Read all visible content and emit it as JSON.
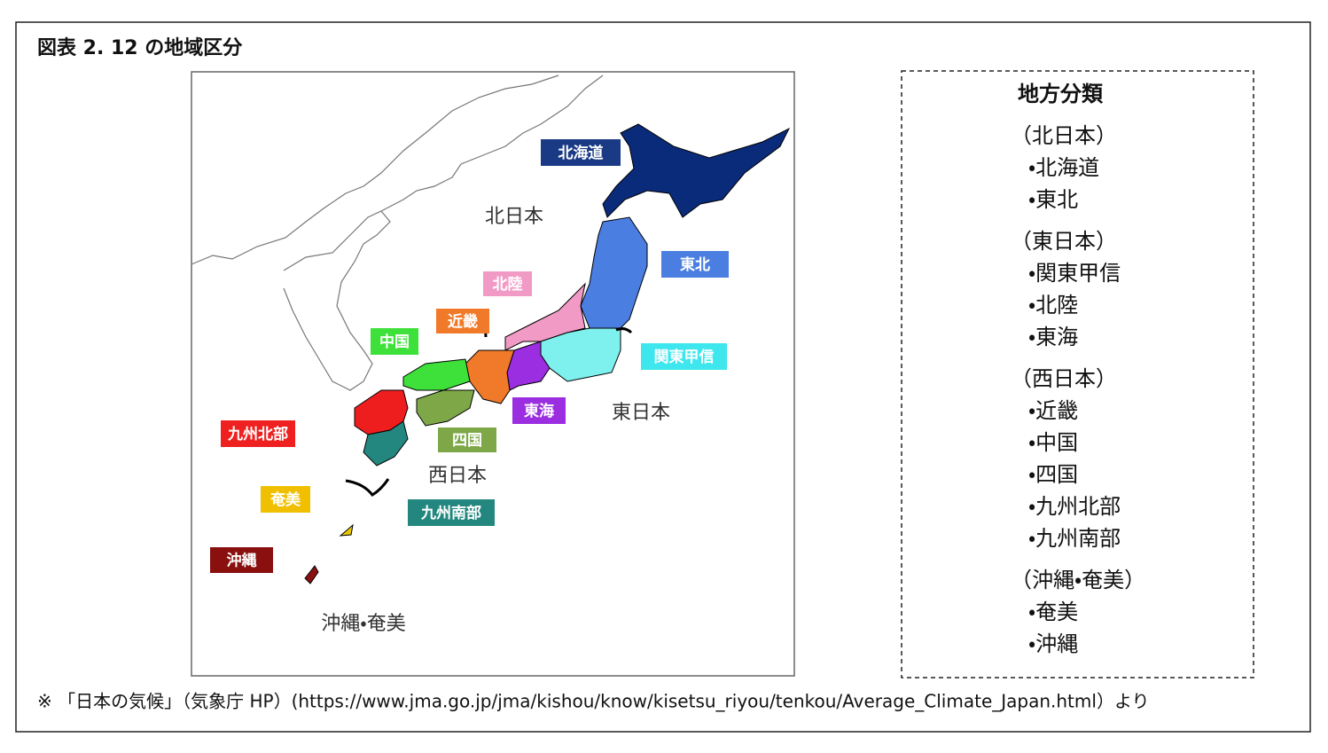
{
  "title": "図表 2. 12 の地域区分",
  "map": {
    "region_labels": [
      "北海道",
      "東北",
      "北陸",
      "近畿",
      "中国",
      "関東甲信",
      "東海",
      "九州北部",
      "四国",
      "奄美",
      "九州南部",
      "沖縄"
    ],
    "zone_labels": [
      "北日本",
      "東日本",
      "西日本",
      "沖縄・奄美"
    ]
  },
  "legend": {
    "title": "地方分類",
    "groups": [
      {
        "name": "（北日本）",
        "items": [
          "・北海道",
          "・東北"
        ]
      },
      {
        "name": "（東日本）",
        "items": [
          "・関東甲信",
          "・北陸",
          "・東海"
        ]
      },
      {
        "name": "（西日本）",
        "items": [
          "・近畿",
          "・中国",
          "・四国",
          "・九州北部",
          "・九州南部"
        ]
      },
      {
        "name": "（沖縄・奄美）",
        "items": [
          "・奄美",
          "・沖縄"
        ]
      }
    ]
  },
  "footnote": "※ 「日本の気候」（気象庁 HP）(https://www.jma.go.jp/jma/kishou/know/kisetsu_riyou/tenkou/Average_Climate_Japan.html）より"
}
